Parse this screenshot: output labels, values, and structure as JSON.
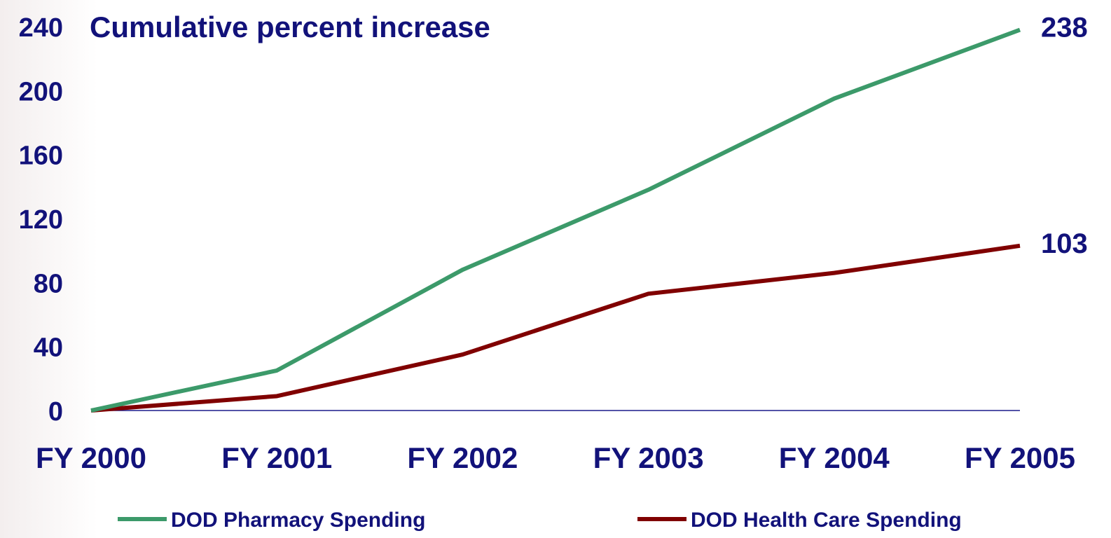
{
  "chart_data": {
    "type": "line",
    "title": "Cumulative percent increase",
    "categories": [
      "FY 2000",
      "FY 2001",
      "FY 2002",
      "FY 2003",
      "FY 2004",
      "FY 2005"
    ],
    "y_ticks": [
      "0",
      "40",
      "80",
      "120",
      "160",
      "200",
      "240"
    ],
    "ylim": [
      0,
      240
    ],
    "grid": false,
    "legend_position": "bottom",
    "series": [
      {
        "name": "DOD Pharmacy Spending",
        "color": "#3c9a6a",
        "values": [
          0,
          25,
          88,
          138,
          195,
          238
        ],
        "end_label": "238"
      },
      {
        "name": "DOD Health Care Spending",
        "color": "#800000",
        "values": [
          0,
          9,
          35,
          73,
          86,
          103
        ],
        "end_label": "103"
      }
    ],
    "text_color": "#12127a",
    "axis_color": "#1a1a8c"
  }
}
